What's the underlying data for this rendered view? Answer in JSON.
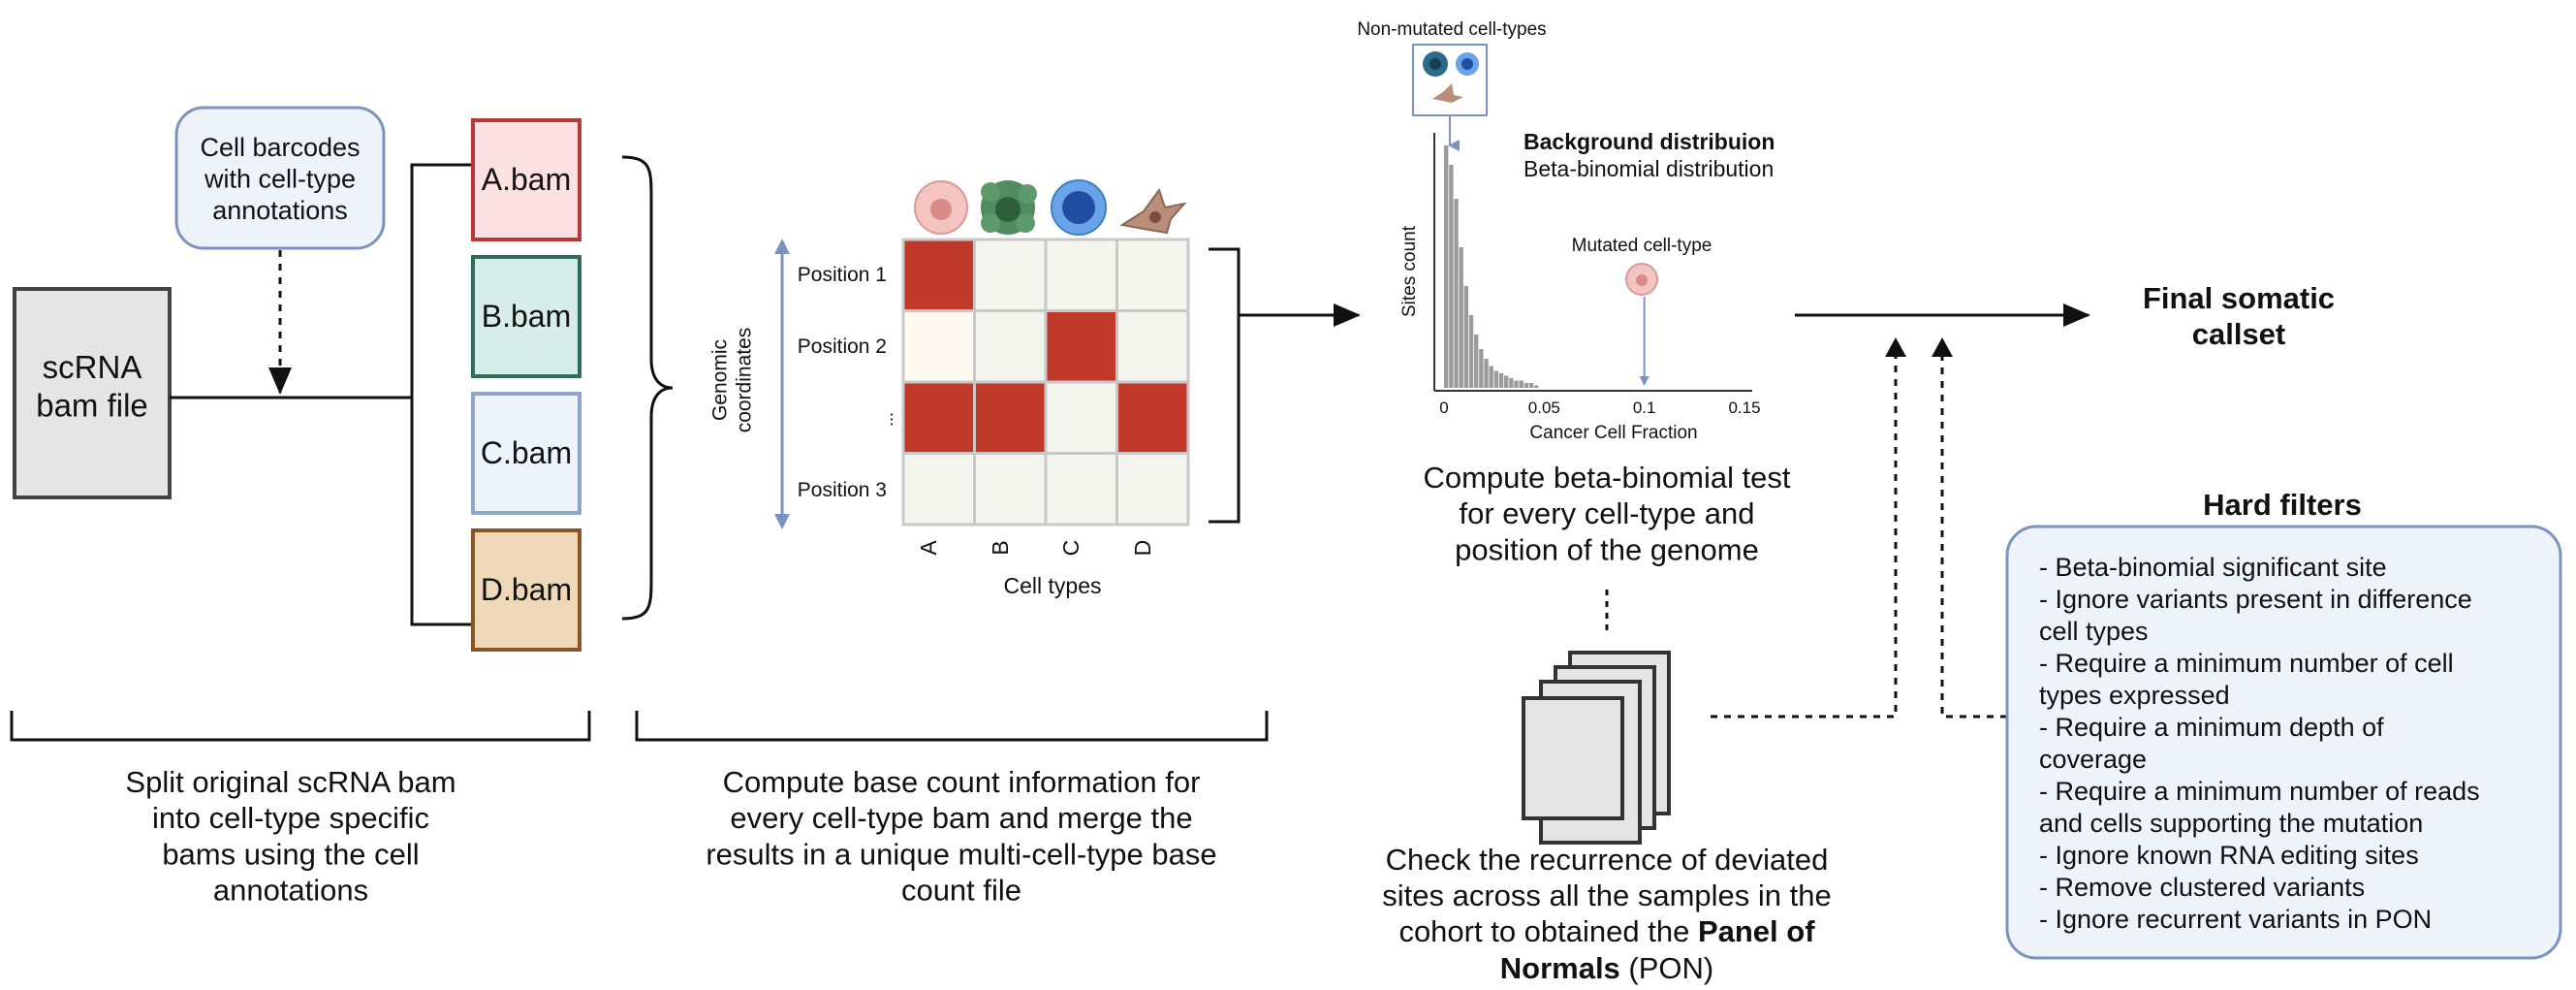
{
  "colors": {
    "red": "#c0392b",
    "bam_a_fill": "#fbe1e1",
    "bam_a_stroke": "#b73a3a",
    "bam_b_fill": "#d7eee8",
    "bam_b_stroke": "#2c6e5a",
    "bam_c_fill": "#edf3fb",
    "bam_c_stroke": "#8fa6c8",
    "bam_d_fill": "#efd8b8",
    "bam_d_stroke": "#8a5524",
    "matrix_empty": "#f3f5ee",
    "filter_box_fill": "#eef3fa",
    "filter_box_stroke": "#7d93bf"
  },
  "step1": {
    "input_file_label": "scRNA\nbam file",
    "barcodes_label": "Cell barcodes\nwith cell-type\nannotations",
    "bams": [
      "A.bam",
      "B.bam",
      "C.bam",
      "D.bam"
    ],
    "caption": "Split original scRNA bam\ninto cell-type specific\nbams using the cell\nannotations"
  },
  "step2": {
    "row_labels": [
      "Position 1",
      "Position 2",
      "...",
      "Position 3"
    ],
    "col_labels": [
      "A",
      "B",
      "C",
      "D"
    ],
    "y_axis_label": "Genomic\ncoordinates",
    "x_axis_label": "Cell types",
    "matrix": [
      [
        1,
        0,
        0,
        0
      ],
      [
        0,
        0,
        1,
        0
      ],
      [
        1,
        1,
        0,
        1
      ],
      [
        0,
        0,
        0,
        0
      ]
    ],
    "caption": "Compute base count information for\nevery cell-type bam and merge the\nresults in a unique multi-cell-type base\ncount file",
    "cell_icons": [
      "cell-type-a-icon",
      "cell-type-b-icon",
      "cell-type-c-icon",
      "cell-type-d-icon"
    ]
  },
  "chart_data": {
    "type": "bar",
    "xlabel": "Cancer Cell Fraction",
    "ylabel": "Sites count",
    "xlim": [
      0,
      0.15
    ],
    "xticks": [
      "0",
      "0.05",
      "0.1",
      "0.15"
    ],
    "x": [
      0.0,
      0.0025,
      0.005,
      0.0075,
      0.01,
      0.0125,
      0.015,
      0.0175,
      0.02,
      0.0225,
      0.025,
      0.0275,
      0.03,
      0.0325,
      0.035,
      0.0375,
      0.04,
      0.0425,
      0.045
    ],
    "values": [
      100,
      92,
      78,
      58,
      42,
      30,
      22,
      16,
      12,
      9,
      7,
      6,
      5,
      4,
      3,
      3,
      2,
      2,
      1
    ],
    "ylim": [
      0,
      100
    ],
    "mutated_marker_x": 0.1,
    "annotations": {
      "non_mutated": "Non-mutated cell-types",
      "background_title": "Background distribuion",
      "background_sub": "Beta-binomial distribution",
      "mutated": "Mutated cell-type"
    }
  },
  "step3": {
    "caption": "Compute beta-binomial test\nfor every cell-type and\nposition of the genome"
  },
  "pon": {
    "caption_lines": [
      "Check the recurrence of deviated",
      "sites across all the samples in the"
    ],
    "caption_line3_pre": "cohort to obtained the ",
    "caption_line3_bold": "Panel of",
    "caption_line4_bold": "Normals",
    "caption_line4_post": " (PON)"
  },
  "final": {
    "label": "Final somatic\ncallset"
  },
  "hard_filters": {
    "title": "Hard filters",
    "items": [
      "- Beta-binomial significant site",
      "- Ignore variants present in difference\ncell types",
      "- Require a minimum number of cell\ntypes expressed",
      "- Require a minimum depth of\ncoverage",
      "- Require a minimum number of reads\nand cells supporting the mutation",
      "- Ignore known RNA editing sites",
      "- Remove clustered variants",
      "- Ignore recurrent variants in PON"
    ]
  }
}
